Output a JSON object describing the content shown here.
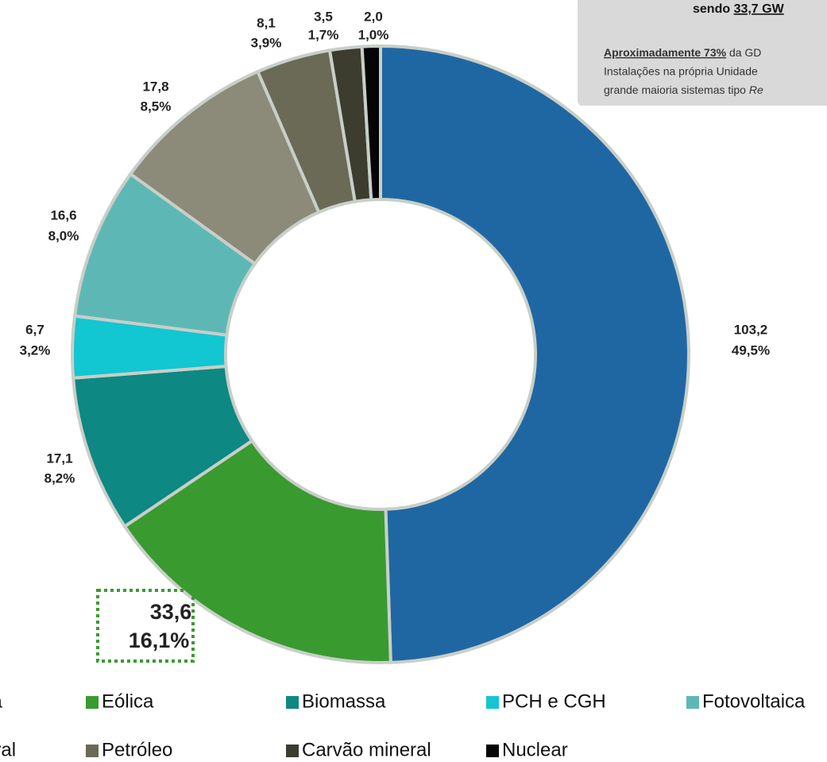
{
  "chart_data": {
    "type": "donut",
    "categories": [
      "Hidráulica",
      "Eólica",
      "Biomassa",
      "PCH e CGH",
      "Fotovoltaica",
      "Gás natural",
      "Petróleo",
      "Carvão mineral",
      "Nuclear"
    ],
    "values": [
      103.2,
      33.6,
      17.1,
      6.7,
      16.6,
      17.8,
      8.1,
      3.5,
      2.0
    ],
    "value_labels": [
      "103,2",
      "33,6",
      "17,1",
      "6,7",
      "16,6",
      "17,8",
      "8,1",
      "3,5",
      "2,0"
    ],
    "percents": [
      49.5,
      16.1,
      8.2,
      3.2,
      8.0,
      8.5,
      3.9,
      1.7,
      1.0
    ],
    "percent_labels": [
      "49,5%",
      "16,1%",
      "8,2%",
      "3,2%",
      "8,0%",
      "8,5%",
      "3,9%",
      "1,7%",
      "1,0%"
    ],
    "colors": [
      "#1f67a3",
      "#399a30",
      "#0d8883",
      "#12c6d2",
      "#5db8b5",
      "#8c8a78",
      "#6a6a57",
      "#3c3c2f",
      "#050505"
    ],
    "annotation": {
      "line1_prefix": "sendo ",
      "line1_value": "33,7 GW",
      "line2_bold": "Aproximadamente 73%",
      "line2_rest": " da GD",
      "line3": "Instalações na própria Unidade",
      "line4": "grande maioria sistemas tipo ",
      "line4_italic": "Re"
    }
  }
}
